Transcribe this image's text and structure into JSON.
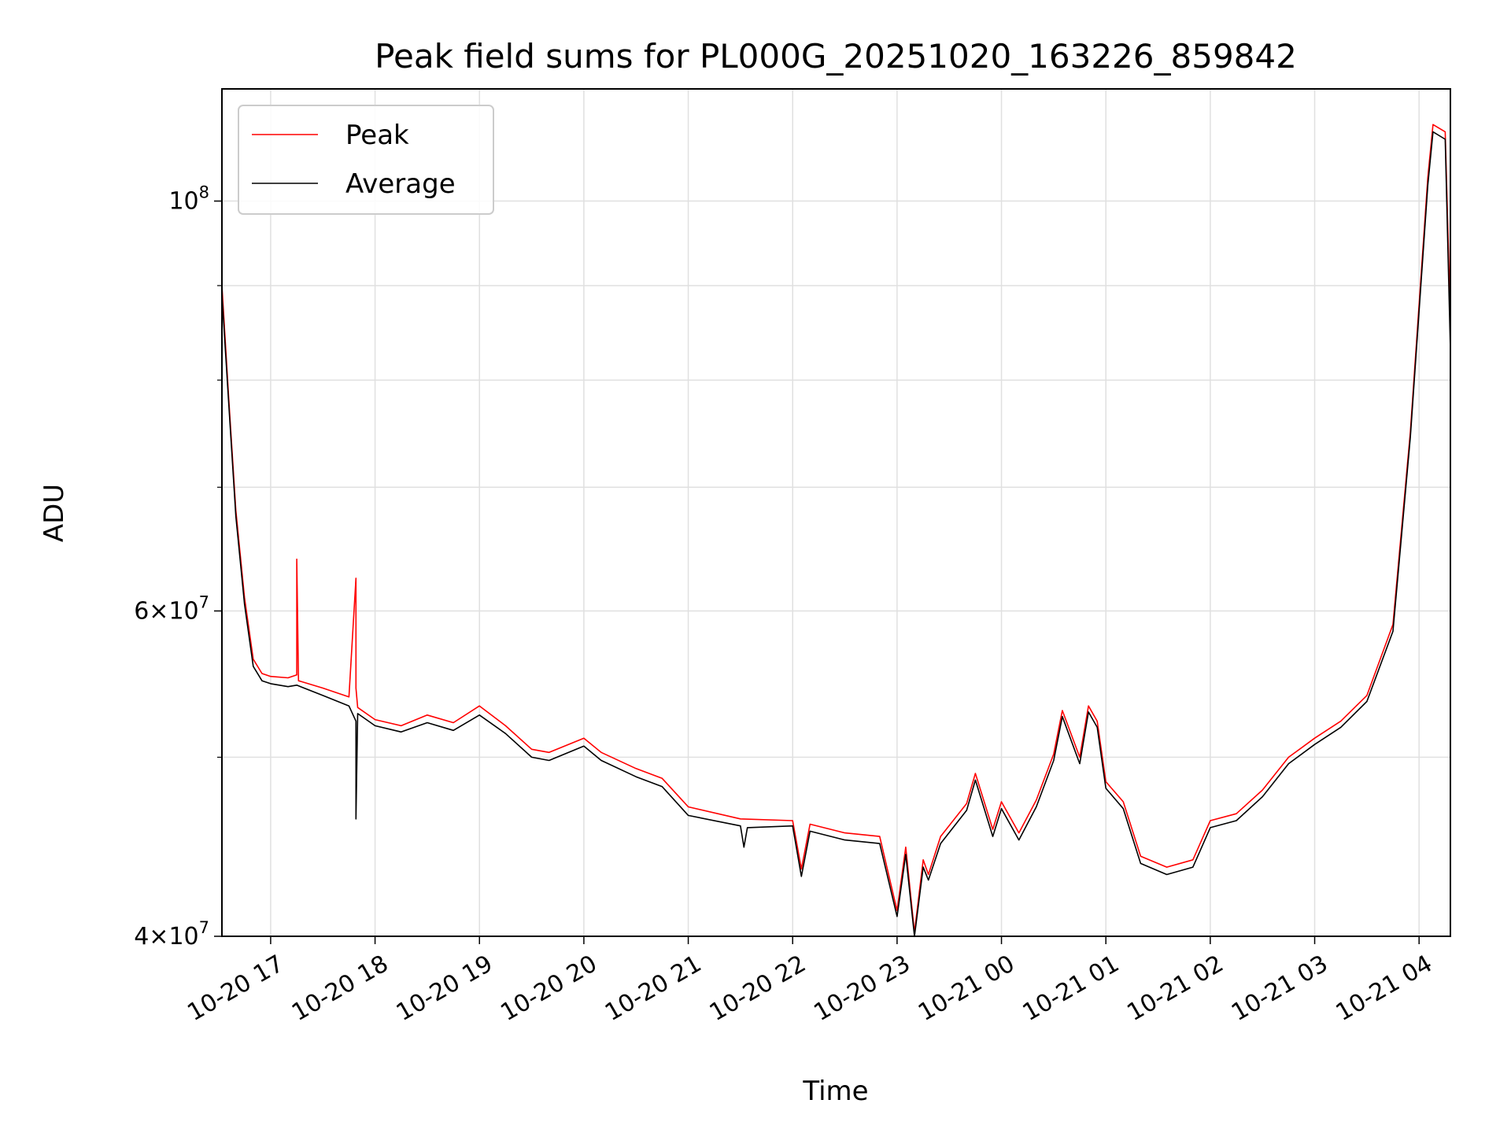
{
  "chart_data": {
    "type": "line",
    "title": "Peak field sums for PL000G_20251020_163226_859842",
    "xlabel": "Time",
    "ylabel": "ADU",
    "y_scale": "log",
    "ylim": [
      40000000,
      115000000
    ],
    "xlim": [
      "2025-10-20 16:32",
      "2025-10-21 04:18"
    ],
    "grid": true,
    "legend_position": "upper left",
    "x_tick_labels": [
      "10-20 17",
      "10-20 18",
      "10-20 19",
      "10-20 20",
      "10-20 21",
      "10-20 22",
      "10-20 23",
      "10-21 00",
      "10-21 01",
      "10-21 02",
      "10-21 03",
      "10-21 04"
    ],
    "y_major_ticks": [
      {
        "value": 40000000,
        "base": "4×10",
        "exp": "7"
      },
      {
        "value": 60000000,
        "base": "6×10",
        "exp": "7"
      },
      {
        "value": 100000000,
        "base": "10",
        "exp": "8"
      }
    ],
    "y_minor_ticks": [
      50000000,
      70000000,
      80000000,
      90000000
    ],
    "series": [
      {
        "name": "Peak",
        "color": "#ff0000",
        "x": [
          "2025-10-20 16:32",
          "2025-10-20 16:36",
          "2025-10-20 16:40",
          "2025-10-20 16:45",
          "2025-10-20 16:50",
          "2025-10-20 16:55",
          "2025-10-20 17:00",
          "2025-10-20 17:10",
          "2025-10-20 17:15",
          "2025-10-20 17:15",
          "2025-10-20 17:16",
          "2025-10-20 17:30",
          "2025-10-20 17:45",
          "2025-10-20 17:49",
          "2025-10-20 17:49",
          "2025-10-20 17:50",
          "2025-10-20 18:00",
          "2025-10-20 18:15",
          "2025-10-20 18:30",
          "2025-10-20 18:45",
          "2025-10-20 19:00",
          "2025-10-20 19:15",
          "2025-10-20 19:30",
          "2025-10-20 19:40",
          "2025-10-20 20:00",
          "2025-10-20 20:10",
          "2025-10-20 20:30",
          "2025-10-20 20:45",
          "2025-10-20 21:00",
          "2025-10-20 21:30",
          "2025-10-20 22:00",
          "2025-10-20 22:05",
          "2025-10-20 22:10",
          "2025-10-20 22:30",
          "2025-10-20 22:50",
          "2025-10-20 23:00",
          "2025-10-20 23:05",
          "2025-10-20 23:10",
          "2025-10-20 23:15",
          "2025-10-20 23:18",
          "2025-10-20 23:25",
          "2025-10-20 23:40",
          "2025-10-20 23:45",
          "2025-10-20 23:55",
          "2025-10-21 00:00",
          "2025-10-21 00:10",
          "2025-10-21 00:20",
          "2025-10-21 00:30",
          "2025-10-21 00:35",
          "2025-10-21 00:45",
          "2025-10-21 00:50",
          "2025-10-21 00:55",
          "2025-10-21 01:00",
          "2025-10-21 01:10",
          "2025-10-21 01:20",
          "2025-10-21 01:35",
          "2025-10-21 01:50",
          "2025-10-21 02:00",
          "2025-10-21 02:15",
          "2025-10-21 02:30",
          "2025-10-21 02:45",
          "2025-10-21 03:00",
          "2025-10-21 03:15",
          "2025-10-21 03:30",
          "2025-10-21 03:45",
          "2025-10-21 03:55",
          "2025-10-21 04:05",
          "2025-10-21 04:08",
          "2025-10-21 04:15",
          "2025-10-21 04:18"
        ],
        "y": [
          90000000,
          78000000,
          68000000,
          61000000,
          56500000,
          55500000,
          55300000,
          55200000,
          55400000,
          64000000,
          55000000,
          54500000,
          53900000,
          62500000,
          54500000,
          53200000,
          52400000,
          52000000,
          52700000,
          52200000,
          53300000,
          52000000,
          50500000,
          50300000,
          51200000,
          50300000,
          49300000,
          48700000,
          47000000,
          46300000,
          46200000,
          43500000,
          46000000,
          45500000,
          45300000,
          41300000,
          44700000,
          40200000,
          44000000,
          43200000,
          45300000,
          47200000,
          49000000,
          45700000,
          47300000,
          45500000,
          47400000,
          50200000,
          53000000,
          50000000,
          53300000,
          52300000,
          48500000,
          47300000,
          44200000,
          43600000,
          44000000,
          46200000,
          46600000,
          48000000,
          50000000,
          51200000,
          52300000,
          54000000,
          59000000,
          75000000,
          103000000,
          110000000,
          109000000,
          86000000
        ]
      },
      {
        "name": "Average",
        "color": "#000000",
        "x": [
          "2025-10-20 16:32",
          "2025-10-20 16:36",
          "2025-10-20 16:40",
          "2025-10-20 16:45",
          "2025-10-20 16:50",
          "2025-10-20 16:55",
          "2025-10-20 17:00",
          "2025-10-20 17:10",
          "2025-10-20 17:15",
          "2025-10-20 17:30",
          "2025-10-20 17:45",
          "2025-10-20 17:49",
          "2025-10-20 17:49",
          "2025-10-20 17:50",
          "2025-10-20 18:00",
          "2025-10-20 18:15",
          "2025-10-20 18:30",
          "2025-10-20 18:45",
          "2025-10-20 19:00",
          "2025-10-20 19:15",
          "2025-10-20 19:30",
          "2025-10-20 19:40",
          "2025-10-20 20:00",
          "2025-10-20 20:10",
          "2025-10-20 20:30",
          "2025-10-20 20:45",
          "2025-10-20 21:00",
          "2025-10-20 21:30",
          "2025-10-20 21:32",
          "2025-10-20 21:34",
          "2025-10-20 22:00",
          "2025-10-20 22:05",
          "2025-10-20 22:10",
          "2025-10-20 22:30",
          "2025-10-20 22:50",
          "2025-10-20 23:00",
          "2025-10-20 23:05",
          "2025-10-20 23:10",
          "2025-10-20 23:15",
          "2025-10-20 23:18",
          "2025-10-20 23:25",
          "2025-10-20 23:40",
          "2025-10-20 23:45",
          "2025-10-20 23:55",
          "2025-10-21 00:00",
          "2025-10-21 00:10",
          "2025-10-21 00:20",
          "2025-10-21 00:30",
          "2025-10-21 00:35",
          "2025-10-21 00:45",
          "2025-10-21 00:50",
          "2025-10-21 00:55",
          "2025-10-21 01:00",
          "2025-10-21 01:10",
          "2025-10-21 01:20",
          "2025-10-21 01:35",
          "2025-10-21 01:50",
          "2025-10-21 02:00",
          "2025-10-21 02:15",
          "2025-10-21 02:30",
          "2025-10-21 02:45",
          "2025-10-21 03:00",
          "2025-10-21 03:15",
          "2025-10-21 03:30",
          "2025-10-21 03:45",
          "2025-10-21 03:55",
          "2025-10-21 04:05",
          "2025-10-21 04:08",
          "2025-10-21 04:15",
          "2025-10-21 04:18"
        ],
        "y": [
          89000000,
          77500000,
          67500000,
          60500000,
          56000000,
          55000000,
          54800000,
          54600000,
          54700000,
          54000000,
          53300000,
          52300000,
          46300000,
          52800000,
          52000000,
          51600000,
          52200000,
          51700000,
          52700000,
          51500000,
          50000000,
          49800000,
          50700000,
          49800000,
          48800000,
          48200000,
          46500000,
          45900000,
          44700000,
          45800000,
          45900000,
          43100000,
          45600000,
          45100000,
          44900000,
          41000000,
          44300000,
          40000000,
          43600000,
          42900000,
          44900000,
          46800000,
          48600000,
          45300000,
          46900000,
          45100000,
          47000000,
          49800000,
          52600000,
          49600000,
          52900000,
          51900000,
          48100000,
          46900000,
          43800000,
          43200000,
          43600000,
          45800000,
          46200000,
          47600000,
          49600000,
          50800000,
          51900000,
          53600000,
          58500000,
          74500000,
          102000000,
          109000000,
          108000000,
          83000000
        ]
      }
    ]
  }
}
